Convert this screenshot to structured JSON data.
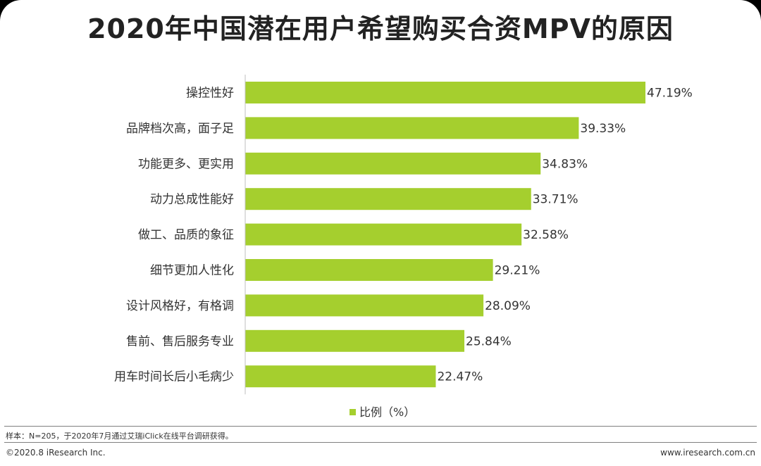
{
  "title": "2020年中国潜在用户希望购买合资MPV的原因",
  "chart_data": {
    "type": "bar",
    "orientation": "horizontal",
    "title": "2020年中国潜在用户希望购买合资MPV的原因",
    "categories": [
      "操控性好",
      "品牌档次高，面子足",
      "功能更多、更实用",
      "动力总成性能好",
      "做工、品质的象征",
      "细节更加人性化",
      "设计风格好，有格调",
      "售前、售后服务专业",
      "用车时间长后小毛病少"
    ],
    "values": [
      47.19,
      39.33,
      34.83,
      33.71,
      32.58,
      29.21,
      28.09,
      25.84,
      22.47
    ],
    "value_labels": [
      "47.19%",
      "39.33%",
      "34.83%",
      "33.71%",
      "32.58%",
      "29.21%",
      "28.09%",
      "25.84%",
      "22.47%"
    ],
    "series_name": "比例（%）",
    "xlim": [
      0,
      47.19
    ],
    "color": "#a5cf2e",
    "legend_position": "bottom"
  },
  "footer": {
    "note": "样本：N=205，于2020年7月通过艾瑞iClick在线平台调研获得。",
    "copyright": "©2020.8 iResearch Inc.",
    "site": "www.iresearch.com.cn"
  }
}
